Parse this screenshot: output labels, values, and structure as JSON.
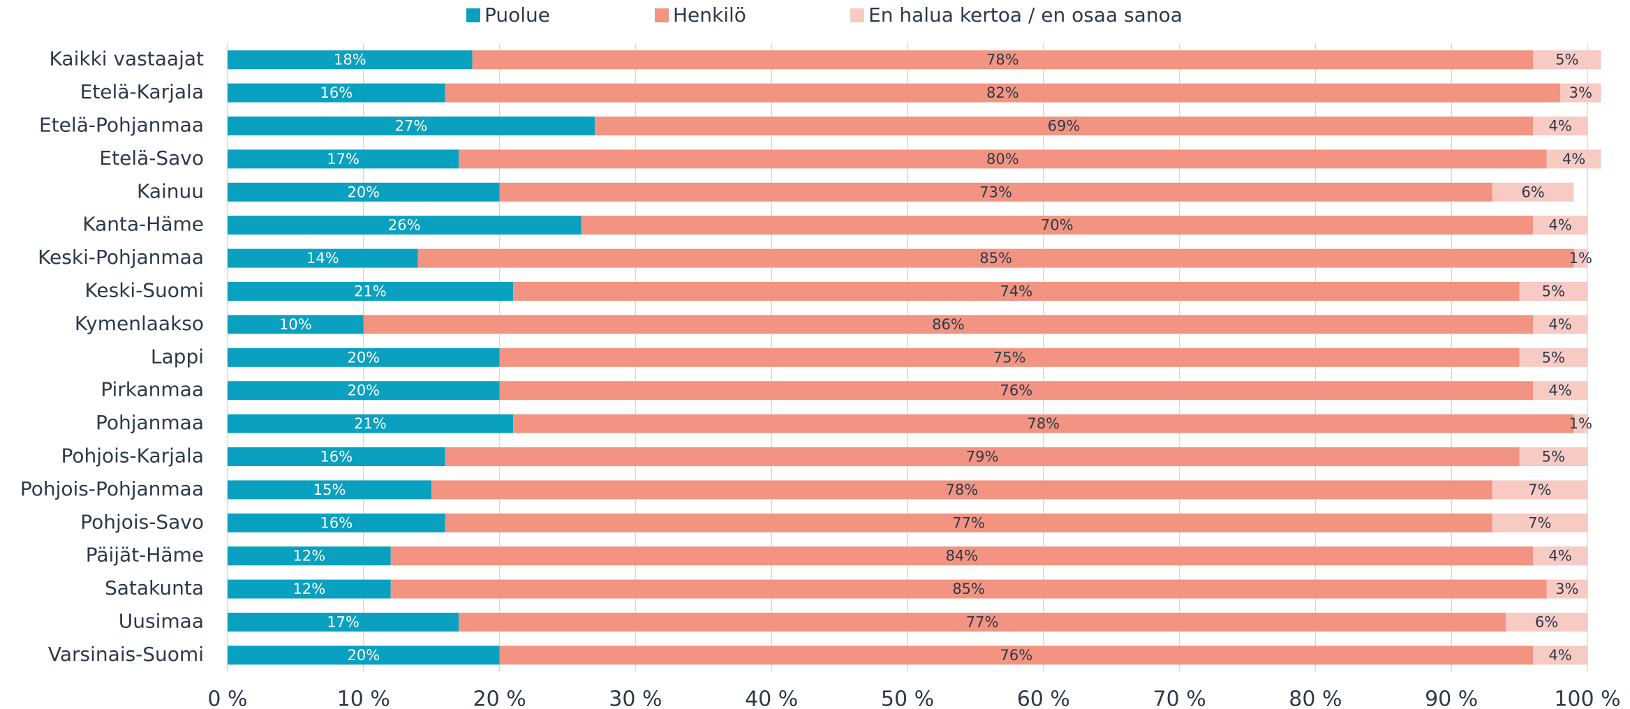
{
  "chart_data": {
    "type": "bar",
    "orientation": "horizontal",
    "stacked": true,
    "categories": [
      "Kaikki vastaajat",
      "Etelä-Karjala",
      "Etelä-Pohjanmaa",
      "Etelä-Savo",
      "Kainuu",
      "Kanta-Häme",
      "Keski-Pohjanmaa",
      "Keski-Suomi",
      "Kymenlaakso",
      "Lappi",
      "Pirkanmaa",
      "Pohjanmaa",
      "Pohjois-Karjala",
      "Pohjois-Pohjanmaa",
      "Pohjois-Savo",
      "Päijät-Häme",
      "Satakunta",
      "Uusimaa",
      "Varsinais-Suomi"
    ],
    "series": [
      {
        "name": "Puolue",
        "color": "#0aa1c1",
        "label_color": "#ffffff",
        "values": [
          18,
          16,
          27,
          17,
          20,
          26,
          14,
          21,
          10,
          20,
          20,
          21,
          16,
          15,
          16,
          12,
          12,
          17,
          20
        ],
        "value_labels": [
          "18%",
          "16%",
          "27%",
          "17%",
          "20%",
          "26%",
          "14%",
          "21%",
          "10%",
          "20%",
          "20%",
          "21%",
          "16%",
          "15%",
          "16%",
          "12%",
          "12%",
          "17%",
          "20%"
        ]
      },
      {
        "name": "Henkilö",
        "color": "#f29481",
        "label_color": "#2b3a4a",
        "values": [
          78,
          82,
          69,
          80,
          73,
          70,
          85,
          74,
          86,
          75,
          76,
          78,
          79,
          78,
          77,
          84,
          85,
          77,
          76
        ],
        "value_labels": [
          "78%",
          "82%",
          "69%",
          "80%",
          "73%",
          "70%",
          "85%",
          "74%",
          "86%",
          "75%",
          "76%",
          "78%",
          "79%",
          "78%",
          "77%",
          "84%",
          "85%",
          "77%",
          "76%"
        ]
      },
      {
        "name": "En halua kertoa / en osaa sanoa",
        "color": "#f8cac4",
        "label_color": "#2b3a4a",
        "values": [
          5,
          3,
          4,
          4,
          6,
          4,
          1,
          5,
          4,
          5,
          4,
          1,
          5,
          7,
          7,
          4,
          3,
          6,
          4
        ],
        "value_labels": [
          "5%",
          "3%",
          "4%",
          "4%",
          "6%",
          "4%",
          "1%",
          "5%",
          "4%",
          "5%",
          "4%",
          "1%",
          "5%",
          "7%",
          "7%",
          "4%",
          "3%",
          "6%",
          "4%"
        ]
      }
    ],
    "xlim": [
      0,
      100
    ],
    "xticks": [
      {
        "value": 0,
        "label": "0 %"
      },
      {
        "value": 10,
        "label": "10 %"
      },
      {
        "value": 20,
        "label": "20 %"
      },
      {
        "value": 30,
        "label": "30 %"
      },
      {
        "value": 40,
        "label": "40 %"
      },
      {
        "value": 50,
        "label": "50 %"
      },
      {
        "value": 60,
        "label": "60 %"
      },
      {
        "value": 70,
        "label": "70 %"
      },
      {
        "value": 80,
        "label": "80 %"
      },
      {
        "value": 90,
        "label": "90 %"
      },
      {
        "value": 100,
        "label": "100 %"
      }
    ],
    "grid": true,
    "legend": "top"
  }
}
